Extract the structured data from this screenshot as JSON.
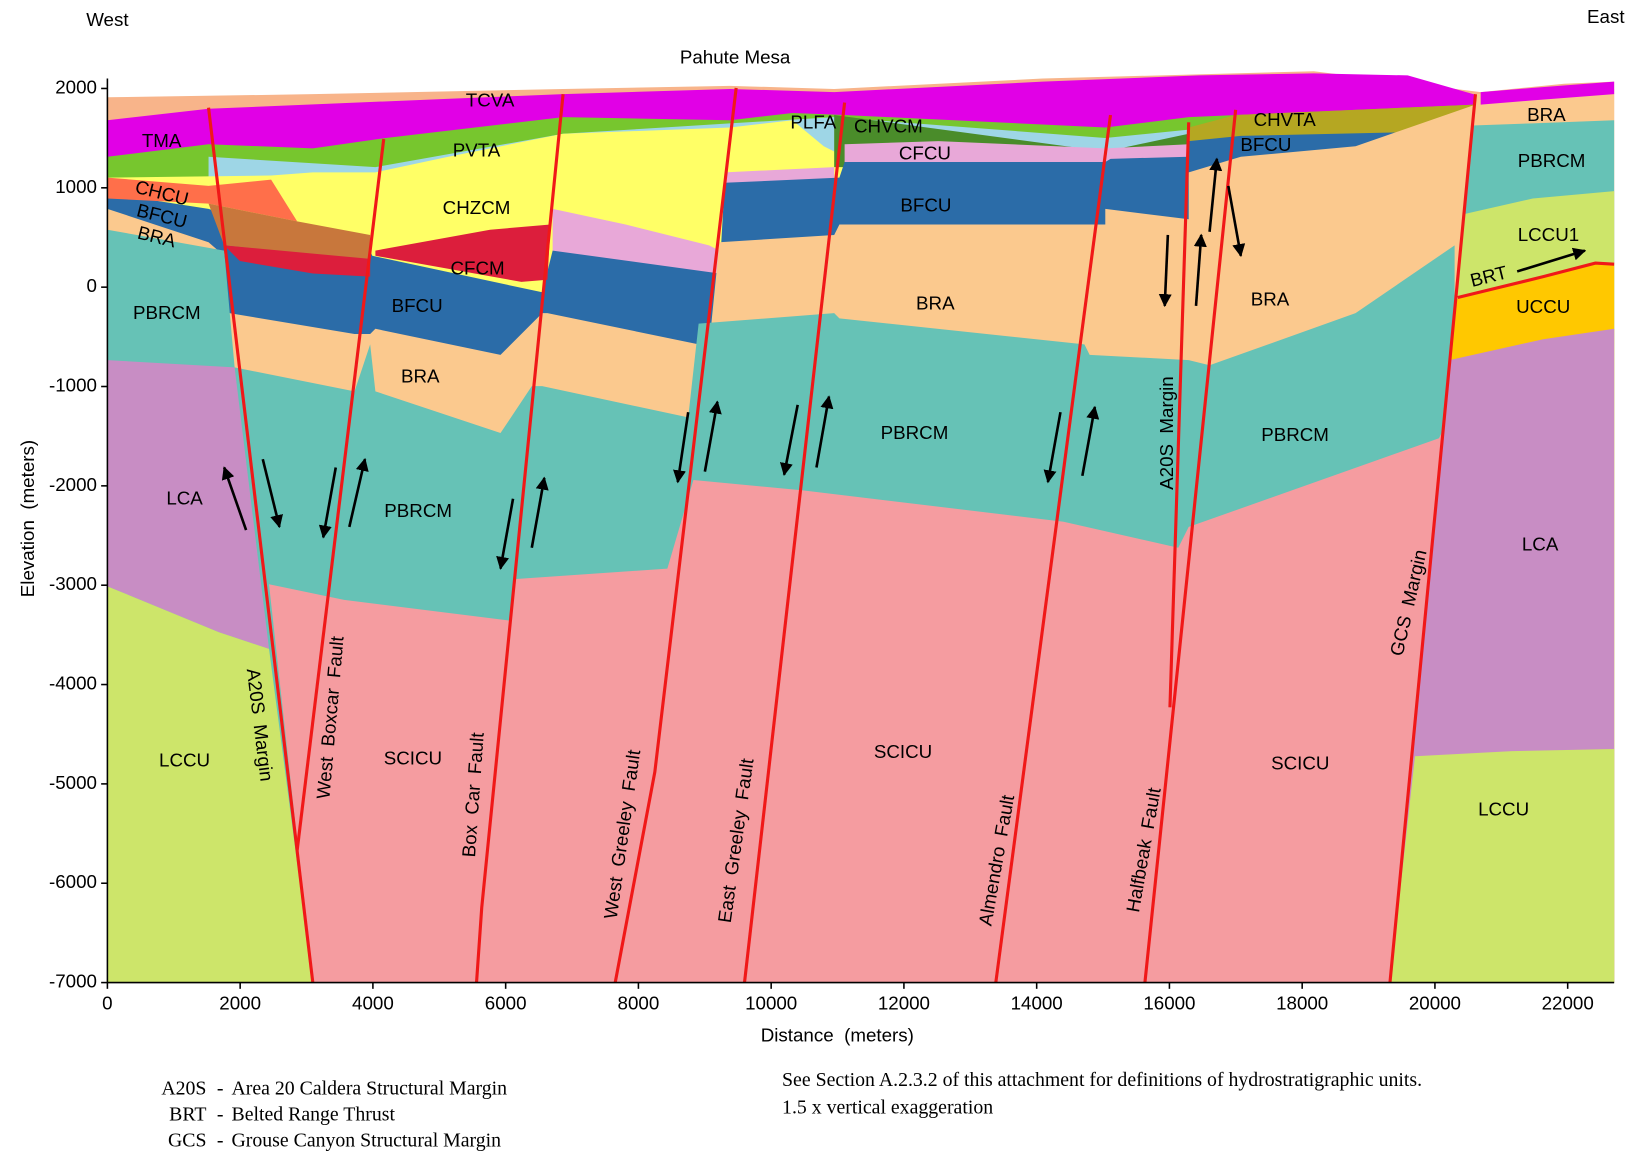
{
  "directions": {
    "west": "West",
    "east": "East"
  },
  "title": "Pahute Mesa",
  "axes": {
    "xlabel": "Distance  (meters)",
    "ylabel": "Elevation  (meters)",
    "xlim": [
      0,
      22700
    ],
    "ylim": [
      -7000,
      2100
    ],
    "xticks": [
      0,
      2000,
      4000,
      6000,
      8000,
      10000,
      12000,
      14000,
      16000,
      18000,
      20000,
      22000
    ],
    "yticks": [
      2000,
      1000,
      0,
      -1000,
      -2000,
      -3000,
      -4000,
      -5000,
      -6000,
      -7000
    ]
  },
  "units": [
    "TCVA",
    "TMA",
    "PVTA",
    "PLFA",
    "CHVCM",
    "CFCU",
    "CHVTA",
    "BFCU",
    "CHZCM",
    "CHCU",
    "BFCU",
    "BRA",
    "BFCU",
    "BRA",
    "PBRCM",
    "LCCU1",
    "BRT",
    "UCCU",
    "CFCM",
    "BFCU",
    "BRA",
    "BRA",
    "PBRCM",
    "BRA",
    "PBRCM",
    "PBRCM",
    "LCA",
    "PBRCM",
    "LCA",
    "SCICU",
    "SCICU",
    "SCICU",
    "LCCU",
    "LCCU"
  ],
  "faults": [
    "A20S  Margin",
    "West  Boxcar  Fault",
    "Box  Car  Fault",
    "West  Greeley  Fault",
    "East  Greeley  Fault",
    "Almendro  Fault",
    "Halfbeak  Fault",
    "A20S  Margin",
    "GCS  Margin"
  ],
  "legend": [
    {
      "abbr": "A20S",
      "sep": "-",
      "desc": "Area 20 Caldera Structural Margin"
    },
    {
      "abbr": "BRT",
      "sep": "-",
      "desc": "Belted Range Thrust"
    },
    {
      "abbr": "GCS",
      "sep": "-",
      "desc": "Grouse Canyon Structural Margin"
    }
  ],
  "notes": [
    "See Section A.2.3.2 of this attachment for definitions of hydrostratigraphic units.",
    "1.5 x vertical exaggeration"
  ]
}
